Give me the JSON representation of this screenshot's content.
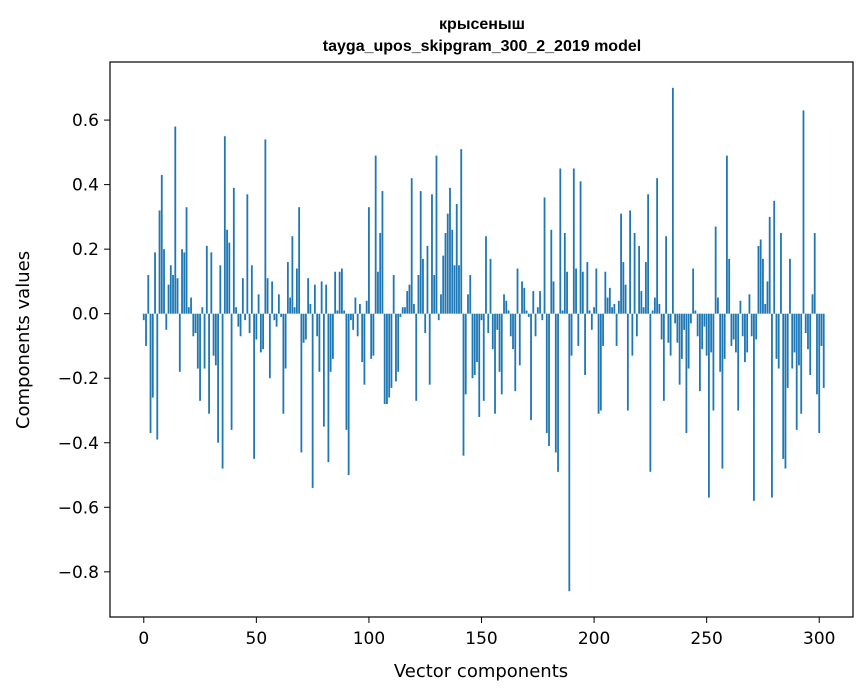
{
  "chart_data": {
    "type": "bar",
    "title": "крысеныш",
    "subtitle": "tayga_upos_skipgram_300_2_2019 model",
    "xlabel": "Vector components",
    "ylabel": "Components values",
    "xlim": [
      -15,
      315
    ],
    "ylim": [
      -0.94,
      0.78
    ],
    "xticks": [
      0,
      50,
      100,
      150,
      200,
      250,
      300
    ],
    "yticks": [
      -0.8,
      -0.6,
      -0.4,
      -0.2,
      0.0,
      0.2,
      0.4,
      0.6
    ],
    "ytick_labels": [
      "−0.8",
      "−0.6",
      "−0.4",
      "−0.2",
      "0.0",
      "0.2",
      "0.4",
      "0.6"
    ],
    "bar_color": "#1f77b4",
    "grid": false,
    "legend": "none",
    "x_start": 0,
    "values": [
      -0.02,
      -0.1,
      0.12,
      -0.37,
      -0.26,
      0.19,
      -0.39,
      0.32,
      0.43,
      0.2,
      -0.05,
      0.09,
      0.15,
      0.12,
      0.58,
      0.11,
      -0.18,
      0.2,
      0.19,
      0.33,
      0.02,
      0.05,
      -0.07,
      -0.06,
      -0.17,
      -0.27,
      0.02,
      -0.17,
      0.21,
      -0.31,
      0.19,
      -0.13,
      -0.16,
      -0.4,
      0.15,
      -0.48,
      0.55,
      0.26,
      0.22,
      -0.36,
      0.39,
      0.02,
      -0.04,
      -0.07,
      0.11,
      -0.02,
      0.37,
      -0.06,
      0.15,
      -0.45,
      -0.08,
      0.06,
      -0.12,
      -0.11,
      0.54,
      0.11,
      -0.2,
      0.1,
      -0.02,
      -0.04,
      0.06,
      -0.01,
      -0.31,
      -0.17,
      0.16,
      0.05,
      0.24,
      0.02,
      0.14,
      0.33,
      -0.43,
      -0.09,
      -0.08,
      0.11,
      0.03,
      -0.54,
      0.09,
      -0.07,
      -0.18,
      0.1,
      -0.35,
      0.09,
      -0.46,
      -0.18,
      -0.14,
      0.13,
      0.01,
      0.13,
      0.14,
      0.01,
      -0.36,
      -0.5,
      -0.02,
      -0.05,
      0.05,
      -0.07,
      0.03,
      -0.15,
      -0.22,
      0.04,
      0.33,
      -0.14,
      -0.13,
      0.49,
      0.13,
      0.25,
      0.38,
      -0.28,
      -0.28,
      -0.26,
      -0.23,
      0.12,
      -0.21,
      -0.18,
      -0.01,
      0.02,
      0.02,
      0.07,
      0.09,
      0.42,
      0.03,
      -0.27,
      0.12,
      0.38,
      0.17,
      -0.06,
      0.21,
      -0.22,
      0.37,
      0.12,
      0.49,
      -0.02,
      0.06,
      0.18,
      0.25,
      0.31,
      0.39,
      0.26,
      0.15,
      0.34,
      0.15,
      0.51,
      -0.44,
      -0.25,
      0.06,
      0.12,
      -0.2,
      -0.19,
      -0.15,
      -0.32,
      -0.02,
      -0.27,
      0.24,
      -0.06,
      0.17,
      -0.11,
      -0.31,
      -0.05,
      -0.18,
      -0.25,
      0.06,
      0.04,
      0.01,
      -0.07,
      -0.11,
      -0.24,
      0.14,
      -0.16,
      0.1,
      0.08,
      0.01,
      -0.01,
      -0.33,
      0.07,
      -0.07,
      0.02,
      0.07,
      -0.02,
      0.36,
      -0.37,
      -0.41,
      0.26,
      0.1,
      -0.43,
      -0.49,
      0.45,
      0.01,
      0.25,
      0.13,
      -0.86,
      -0.13,
      0.45,
      0.14,
      -0.1,
      0.41,
      0.13,
      -0.19,
      0.16,
      0.01,
      -0.05,
      0.02,
      0.14,
      -0.31,
      -0.3,
      -0.1,
      0.13,
      0.05,
      0.08,
      0.02,
      0.03,
      -0.1,
      0.04,
      0.31,
      0.16,
      0.09,
      -0.3,
      0.32,
      -0.13,
      0.25,
      -0.07,
      0.21,
      0.07,
      0.02,
      0.16,
      0.37,
      -0.49,
      0.01,
      0.05,
      0.42,
      0.03,
      -0.08,
      -0.27,
      0.24,
      -0.09,
      -0.13,
      0.7,
      -0.03,
      -0.09,
      -0.22,
      -0.14,
      -0.05,
      -0.37,
      -0.17,
      -0.03,
      0.14,
      0.01,
      -0.07,
      -0.24,
      -0.11,
      -0.04,
      -0.13,
      -0.57,
      -0.12,
      -0.3,
      0.27,
      0.05,
      -0.18,
      -0.48,
      -0.14,
      0.49,
      0.17,
      -0.1,
      -0.08,
      -0.12,
      -0.3,
      0.04,
      -0.07,
      -0.15,
      -0.12,
      0.06,
      -0.07,
      -0.58,
      -0.08,
      0.21,
      0.23,
      0.17,
      0.03,
      0.1,
      0.3,
      -0.57,
      0.35,
      -0.14,
      -0.17,
      0.25,
      -0.45,
      -0.48,
      -0.23,
      0.17,
      -0.17,
      -0.12,
      -0.36,
      -0.16,
      -0.31,
      0.63,
      -0.06,
      -0.11,
      -0.19,
      0.06,
      0.25,
      -0.25,
      -0.37,
      -0.1,
      -0.23
    ]
  }
}
